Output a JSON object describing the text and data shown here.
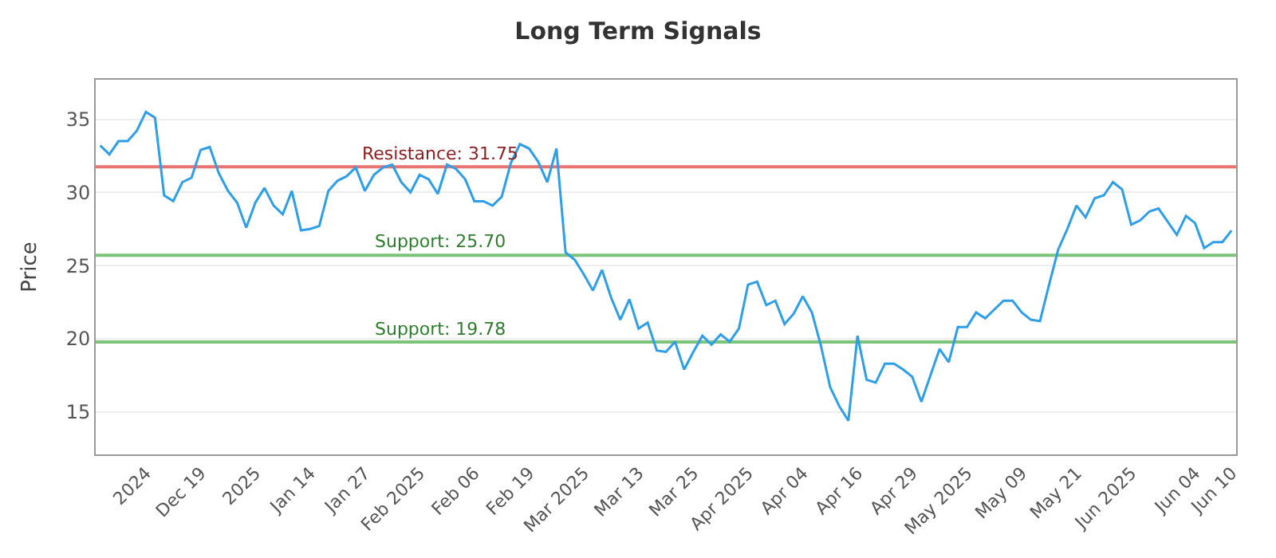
{
  "chart_data": {
    "type": "line",
    "title": "Long Term Signals",
    "ylabel": "Price",
    "categories": [
      null,
      null,
      null,
      null,
      null,
      "2024",
      null,
      null,
      null,
      null,
      null,
      "Dec 19",
      null,
      null,
      null,
      null,
      null,
      "2025",
      null,
      null,
      null,
      null,
      null,
      "Jan 14",
      null,
      null,
      null,
      null,
      null,
      "Jan 27",
      null,
      null,
      null,
      null,
      null,
      "Feb 2025",
      null,
      null,
      null,
      null,
      null,
      "Feb 06",
      null,
      null,
      null,
      null,
      null,
      "Feb 19",
      null,
      null,
      null,
      null,
      null,
      "Mar 2025",
      null,
      null,
      null,
      null,
      null,
      "Mar 13",
      null,
      null,
      null,
      null,
      null,
      "Mar 25",
      null,
      null,
      null,
      null,
      null,
      "Apr 2025",
      null,
      null,
      null,
      null,
      null,
      "Apr 04",
      null,
      null,
      null,
      null,
      null,
      "Apr 16",
      null,
      null,
      null,
      null,
      null,
      "Apr 29",
      null,
      null,
      null,
      null,
      null,
      "May 2025",
      null,
      null,
      null,
      null,
      null,
      "May 09",
      null,
      null,
      null,
      null,
      null,
      "May 21",
      null,
      null,
      null,
      null,
      null,
      "Jun 2025",
      null,
      null,
      null,
      null,
      null,
      null,
      "Jun 04",
      null,
      null,
      null,
      "Jun 10"
    ],
    "series": [
      {
        "color": "#2f9ee8",
        "values": [
          33.2,
          32.6,
          33.5,
          33.5,
          34.2,
          35.5,
          35.1,
          29.8,
          29.4,
          30.7,
          31.0,
          32.9,
          33.1,
          31.3,
          30.1,
          29.3,
          27.6,
          29.3,
          30.3,
          29.1,
          28.5,
          30.1,
          27.4,
          27.5,
          27.7,
          30.1,
          30.8,
          31.1,
          31.7,
          30.1,
          31.2,
          31.7,
          31.9,
          30.7,
          30.0,
          31.2,
          30.9,
          29.9,
          31.9,
          31.6,
          30.9,
          29.4,
          29.4,
          29.1,
          29.7,
          32.0,
          33.3,
          33.0,
          32.1,
          30.7,
          33.0,
          25.9,
          25.4,
          24.4,
          23.3,
          24.7,
          22.8,
          21.3,
          22.7,
          20.7,
          21.1,
          19.2,
          19.1,
          19.8,
          17.9,
          19.1,
          20.2,
          19.6,
          20.3,
          19.8,
          20.7,
          23.7,
          23.9,
          22.3,
          22.6,
          21.0,
          21.7,
          22.9,
          21.8,
          19.5,
          16.7,
          15.4,
          14.4,
          20.2,
          17.2,
          17.0,
          18.3,
          18.3,
          17.9,
          17.4,
          15.7,
          17.5,
          19.3,
          18.4,
          20.8,
          20.8,
          21.8,
          21.4,
          22.0,
          22.6,
          22.6,
          21.8,
          21.3,
          21.2,
          23.7,
          26.1,
          27.5,
          29.1,
          28.3,
          29.6,
          29.8,
          30.7,
          30.2,
          27.8,
          28.1,
          28.7,
          28.9,
          28.0,
          27.1,
          28.4,
          27.9,
          26.2,
          26.6,
          26.6,
          27.4
        ]
      }
    ],
    "ylim": [
      12.1,
      37.7
    ],
    "yticks": [
      15,
      20,
      25,
      30,
      35
    ],
    "grid": "y",
    "marker": "none",
    "line_style": "solid",
    "ref_lines": [
      {
        "axis": "y",
        "value": 31.75,
        "label": "Resistance: 31.75",
        "color": "#e8736f"
      },
      {
        "axis": "y",
        "value": 25.7,
        "label": "Support: 25.70",
        "color": "#7cc47a"
      },
      {
        "axis": "y",
        "value": 19.78,
        "label": "Support: 19.78",
        "color": "#7cc47a"
      }
    ]
  }
}
